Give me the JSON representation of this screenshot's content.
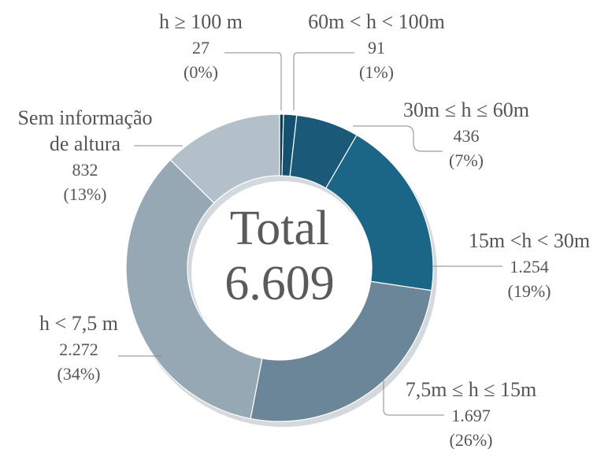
{
  "chart_data": {
    "type": "donut",
    "categories": [
      "h ≥ 100 m",
      "60m <  h < 100m",
      "30m ≤  h ≤ 60m",
      "15m <h < 30m",
      "7,5m ≤ h ≤ 15m",
      "h < 7,5 m",
      "Sem informação de altura"
    ],
    "values": [
      27,
      91,
      436,
      1254,
      1697,
      2272,
      832
    ],
    "value_labels": [
      "27",
      "91",
      "436",
      "1.254",
      "1.697",
      "2.272",
      "832"
    ],
    "percent_labels": [
      "(0%)",
      "(1%)",
      "(7%)",
      "(19%)",
      "(26%)",
      "(34%)",
      "(13%)"
    ],
    "colors": [
      "#0e3a4e",
      "#15516f",
      "#1a5a78",
      "#1b6586",
      "#6b8699",
      "#97a8b5",
      "#b3c0c9"
    ],
    "center_title": "Total",
    "total": {
      "value": 6609,
      "label": "6.609"
    }
  }
}
